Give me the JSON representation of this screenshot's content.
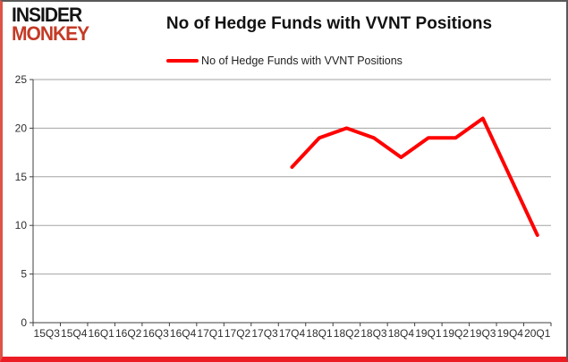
{
  "logo": {
    "line1": "INSIDER",
    "line2": "MONKEY"
  },
  "header": {
    "title": "No of Hedge Funds with VVNT Positions"
  },
  "legend": {
    "label": "No of Hedge Funds with VVNT Positions"
  },
  "colors": {
    "series_red": "#ff0000",
    "logo_black": "#141414",
    "logo_red": "#c43a26",
    "grid_gray": "#a3a3a3",
    "axis_dark": "#3f3f3f",
    "border_bottom_red": "#ec1c24",
    "border_left_red": "#dd5347",
    "border_dark": "#595959"
  },
  "chart_data": {
    "type": "line",
    "title": "No of Hedge Funds with VVNT Positions",
    "categories": [
      "15Q3",
      "15Q4",
      "16Q1",
      "16Q2",
      "16Q3",
      "16Q4",
      "17Q1",
      "17Q2",
      "17Q3",
      "17Q4",
      "18Q1",
      "18Q2",
      "18Q3",
      "18Q4",
      "19Q1",
      "19Q2",
      "19Q3",
      "19Q4",
      "20Q1"
    ],
    "series": [
      {
        "name": "No of Hedge Funds with VVNT Positions",
        "color": "#ff0000",
        "values": [
          null,
          null,
          null,
          null,
          null,
          null,
          null,
          null,
          null,
          16,
          19,
          20,
          19,
          17,
          19,
          19,
          21,
          15,
          9
        ]
      }
    ],
    "ylim": [
      0,
      25
    ],
    "ytick_step": 5,
    "grid": true,
    "legend_position": "top"
  }
}
